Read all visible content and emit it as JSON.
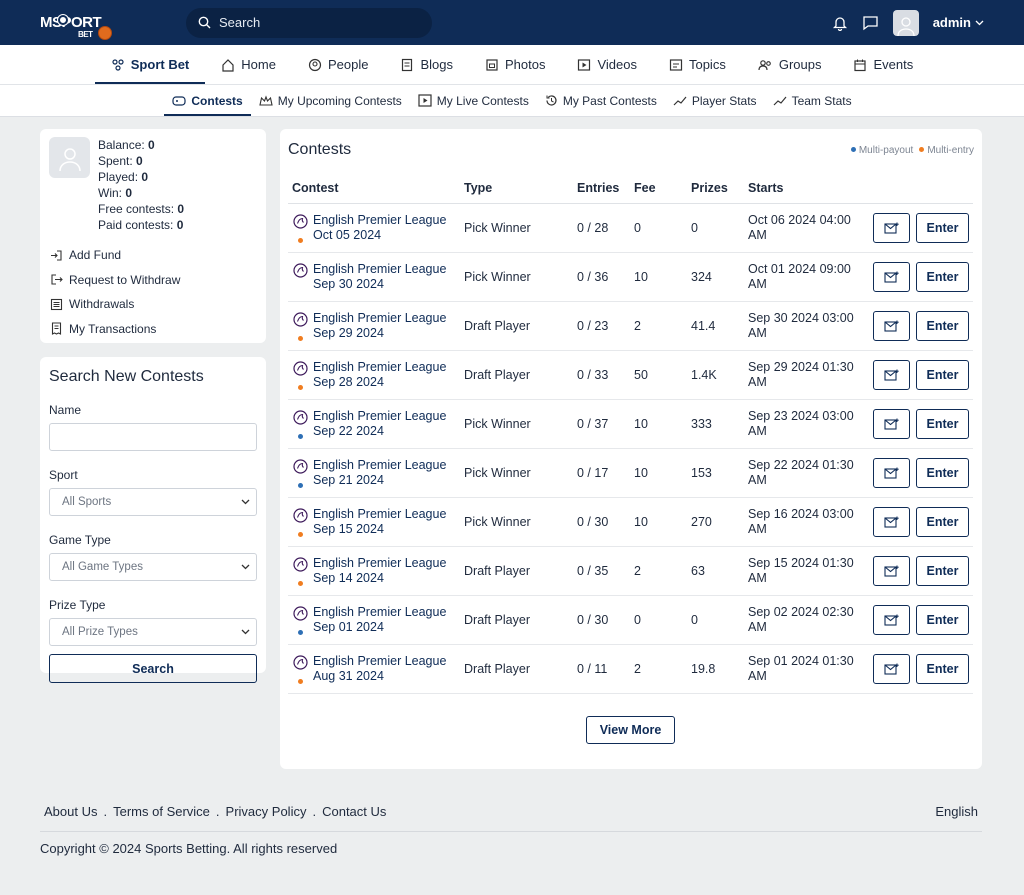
{
  "topbar": {
    "logo_text": "MSPORT",
    "logo_sub": "BET",
    "search_placeholder": "Search",
    "username": "admin"
  },
  "mainnav": [
    {
      "key": "sport-bet",
      "label": "Sport Bet",
      "icon": "sport-bet-icon",
      "active": true
    },
    {
      "key": "home",
      "label": "Home",
      "icon": "home-icon"
    },
    {
      "key": "people",
      "label": "People",
      "icon": "people-icon"
    },
    {
      "key": "blogs",
      "label": "Blogs",
      "icon": "blogs-icon"
    },
    {
      "key": "photos",
      "label": "Photos",
      "icon": "photos-icon"
    },
    {
      "key": "videos",
      "label": "Videos",
      "icon": "videos-icon"
    },
    {
      "key": "topics",
      "label": "Topics",
      "icon": "topics-icon"
    },
    {
      "key": "groups",
      "label": "Groups",
      "icon": "groups-icon"
    },
    {
      "key": "events",
      "label": "Events",
      "icon": "events-icon"
    }
  ],
  "subnav": [
    {
      "key": "contests",
      "label": "Contests",
      "icon": "gamepad-icon",
      "active": true
    },
    {
      "key": "upcoming",
      "label": "My Upcoming Contests",
      "icon": "crown-icon"
    },
    {
      "key": "live",
      "label": "My Live Contests",
      "icon": "play-icon"
    },
    {
      "key": "past",
      "label": "My Past Contests",
      "icon": "history-icon"
    },
    {
      "key": "player-stats",
      "label": "Player Stats",
      "icon": "trend-icon"
    },
    {
      "key": "team-stats",
      "label": "Team Stats",
      "icon": "trend-icon"
    }
  ],
  "account": {
    "balance_label": "Balance:",
    "balance": "0",
    "spent_label": "Spent:",
    "spent": "0",
    "played_label": "Played:",
    "played": "0",
    "win_label": "Win:",
    "win": "0",
    "free_label": "Free contests:",
    "free": "0",
    "paid_label": "Paid contests:",
    "paid": "0",
    "links": [
      {
        "key": "add-fund",
        "label": "Add Fund",
        "icon": "login-icon"
      },
      {
        "key": "withdraw",
        "label": "Request to Withdraw",
        "icon": "logout-icon"
      },
      {
        "key": "withdrawals",
        "label": "Withdrawals",
        "icon": "list-icon"
      },
      {
        "key": "transactions",
        "label": "My Transactions",
        "icon": "receipt-icon"
      }
    ]
  },
  "search_contests": {
    "title": "Search New Contests",
    "name_label": "Name",
    "sport_label": "Sport",
    "sport_value": "All Sports",
    "game_label": "Game Type",
    "game_value": "All Game Types",
    "prize_label": "Prize Type",
    "prize_value": "All Prize Types",
    "button": "Search"
  },
  "contests": {
    "title": "Contests",
    "legend_multi_payout": "Multi-payout",
    "legend_multi_entry": "Multi-entry",
    "headers": [
      "Contest",
      "Type",
      "Entries",
      "Fee",
      "Prizes",
      "Starts"
    ],
    "enter_label": "Enter",
    "view_more": "View More",
    "rows": [
      {
        "league": "English Premier League",
        "date": "Oct 05 2024",
        "dot": "orange",
        "type": "Pick Winner",
        "entries": "0 / 28",
        "fee": "0",
        "prizes": "0",
        "starts": "Oct 06 2024 04:00",
        "ampm": "AM"
      },
      {
        "league": "English Premier League",
        "date": "Sep 30 2024",
        "dot": "",
        "type": "Pick Winner",
        "entries": "0 / 36",
        "fee": "10",
        "prizes": "324",
        "starts": "Oct 01 2024 09:00",
        "ampm": "AM"
      },
      {
        "league": "English Premier League",
        "date": "Sep 29 2024",
        "dot": "orange",
        "type": "Draft Player",
        "entries": "0 / 23",
        "fee": "2",
        "prizes": "41.4",
        "starts": "Sep 30 2024 03:00",
        "ampm": "AM"
      },
      {
        "league": "English Premier League",
        "date": "Sep 28 2024",
        "dot": "orange",
        "type": "Draft Player",
        "entries": "0 / 33",
        "fee": "50",
        "prizes": "1.4K",
        "starts": "Sep 29 2024 01:30",
        "ampm": "AM"
      },
      {
        "league": "English Premier League",
        "date": "Sep 22 2024",
        "dot": "blue",
        "type": "Pick Winner",
        "entries": "0 / 37",
        "fee": "10",
        "prizes": "333",
        "starts": "Sep 23 2024 03:00",
        "ampm": "AM"
      },
      {
        "league": "English Premier League",
        "date": "Sep 21 2024",
        "dot": "blue",
        "type": "Pick Winner",
        "entries": "0 / 17",
        "fee": "10",
        "prizes": "153",
        "starts": "Sep 22 2024 01:30",
        "ampm": "AM"
      },
      {
        "league": "English Premier League",
        "date": "Sep 15 2024",
        "dot": "orange",
        "type": "Pick Winner",
        "entries": "0 / 30",
        "fee": "10",
        "prizes": "270",
        "starts": "Sep 16 2024 03:00",
        "ampm": "AM"
      },
      {
        "league": "English Premier League",
        "date": "Sep 14 2024",
        "dot": "orange",
        "type": "Draft Player",
        "entries": "0 / 35",
        "fee": "2",
        "prizes": "63",
        "starts": "Sep 15 2024 01:30",
        "ampm": "AM"
      },
      {
        "league": "English Premier League",
        "date": "Sep 01 2024",
        "dot": "blue",
        "type": "Draft Player",
        "entries": "0 / 30",
        "fee": "0",
        "prizes": "0",
        "starts": "Sep 02 2024 02:30",
        "ampm": "AM"
      },
      {
        "league": "English Premier League",
        "date": "Aug 31 2024",
        "dot": "orange",
        "type": "Draft Player",
        "entries": "0 / 11",
        "fee": "2",
        "prizes": "19.8",
        "starts": "Sep 01 2024 01:30",
        "ampm": "AM"
      }
    ]
  },
  "footer": {
    "links": [
      "About Us",
      "Terms of Service",
      "Privacy Policy",
      "Contact Us"
    ],
    "language": "English",
    "copyright": "Copyright © 2024 Sports Betting. All rights reserved"
  },
  "colors": {
    "navy": "#0f2c57",
    "blue_dot": "#2e6fb5",
    "orange_dot": "#f07d20"
  }
}
